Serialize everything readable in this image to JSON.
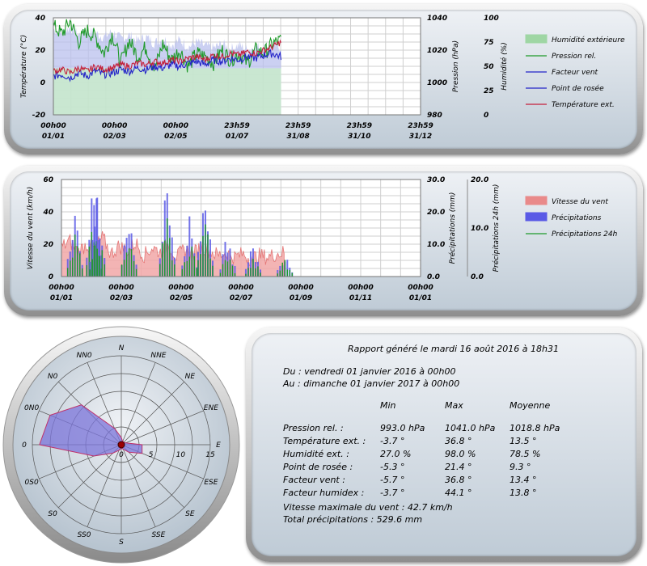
{
  "chart_data": [
    {
      "type": "line",
      "id": "weather",
      "x_ticks": [
        [
          "00h00",
          "01/01"
        ],
        [
          "00h00",
          "02/03"
        ],
        [
          "00h00",
          "02/05"
        ],
        [
          "23h59",
          "01/07"
        ],
        [
          "23h59",
          "31/08"
        ],
        [
          "23h59",
          "31/10"
        ],
        [
          "23h59",
          "31/12"
        ]
      ],
      "axes": {
        "left": {
          "label": "Température (°C)",
          "range": [
            -20,
            40
          ],
          "ticks": [
            "40",
            "20",
            "0",
            "-20"
          ]
        },
        "right1": {
          "label": "Pression (hPa)",
          "range": [
            980,
            1040
          ],
          "ticks": [
            "1040",
            "1020",
            "1000",
            "980"
          ]
        },
        "right2": {
          "label": "Humidité (%)",
          "range": [
            0,
            100
          ],
          "ticks": [
            "100",
            "75",
            "50",
            "25",
            "0"
          ]
        }
      },
      "legend": [
        {
          "label": "Humidité extérieure",
          "color": "#9fd6a4",
          "kind": "area"
        },
        {
          "label": "Pression rel.",
          "color": "#1f9a2a",
          "kind": "line"
        },
        {
          "label": "Facteur vent",
          "color": "#2323c8",
          "kind": "line"
        },
        {
          "label": "Point de rosée",
          "color": "#2323c8",
          "kind": "line"
        },
        {
          "label": "Température ext.",
          "color": "#c41e3a",
          "kind": "line"
        }
      ],
      "series_approx": {
        "temperature": [
          7,
          8,
          6,
          9,
          7,
          10,
          8,
          9,
          11,
          10,
          12,
          11,
          13,
          12,
          14,
          13,
          15,
          16,
          14,
          17,
          16,
          18,
          17,
          19,
          18,
          20,
          22,
          25
        ],
        "wind_chill": [
          4,
          5,
          3,
          6,
          4,
          7,
          5,
          6,
          8,
          7,
          9,
          8,
          10,
          9,
          11,
          10,
          12,
          13,
          11,
          14,
          13,
          15,
          14,
          16,
          15,
          17,
          18,
          16
        ],
        "pressure": [
          1035,
          1030,
          1038,
          1025,
          1032,
          1028,
          1018,
          1030,
          1012,
          1026,
          1016,
          1022,
          1008,
          1024,
          1014,
          1020,
          1010,
          1018,
          1016,
          1012,
          1020,
          1014,
          1018,
          1012,
          1020,
          1018,
          1024,
          1026
        ],
        "humidity": [
          88,
          85,
          90,
          82,
          87,
          84,
          80,
          86,
          78,
          82,
          76,
          80,
          74,
          79,
          72,
          77,
          70,
          75,
          71,
          69,
          73,
          68,
          72,
          67,
          70,
          69,
          72,
          70
        ]
      }
    },
    {
      "type": "bar",
      "id": "wind_rain",
      "x_ticks": [
        [
          "00h00",
          "01/01"
        ],
        [
          "00h00",
          "02/03"
        ],
        [
          "00h00",
          "02/05"
        ],
        [
          "00h00",
          "02/07"
        ],
        [
          "00h00",
          "01/09"
        ],
        [
          "00h00",
          "01/11"
        ],
        [
          "00h00",
          "01/01"
        ]
      ],
      "axes": {
        "left": {
          "label": "Vitesse du vent (km/h)",
          "range": [
            0,
            60
          ],
          "ticks": [
            "60",
            "40",
            "20",
            "0"
          ]
        },
        "right1": {
          "label": "Précipitations (mm)",
          "range": [
            0,
            30
          ],
          "ticks": [
            "30.0",
            "20.0",
            "10.0",
            "0.0"
          ]
        },
        "right2": {
          "label": "Précipitations 24h (mm)",
          "range": [
            0,
            20
          ],
          "ticks": [
            "20.0",
            "10.0",
            "0.0"
          ]
        }
      },
      "legend": [
        {
          "label": "Vitesse du vent",
          "color": "#e98a8a",
          "kind": "area"
        },
        {
          "label": "Précipitations",
          "color": "#5a5ae6",
          "kind": "area"
        },
        {
          "label": "Précipitations 24h",
          "color": "#1f9a2a",
          "kind": "line"
        }
      ],
      "series_approx": {
        "wind_speed": [
          18,
          22,
          15,
          20,
          17,
          24,
          14,
          19,
          16,
          21,
          13,
          18,
          15,
          20,
          12,
          17,
          14,
          19,
          16,
          13,
          15,
          12,
          14,
          11,
          13,
          12,
          14,
          15
        ],
        "rain_24h_peaks": [
          [
            0.04,
            14
          ],
          [
            0.1,
            18
          ],
          [
            0.11,
            15
          ],
          [
            0.21,
            13
          ],
          [
            0.33,
            18
          ],
          [
            0.4,
            11
          ],
          [
            0.45,
            19
          ],
          [
            0.52,
            8
          ],
          [
            0.6,
            6
          ],
          [
            0.7,
            5
          ]
        ]
      }
    },
    {
      "type": "polar",
      "id": "wind_rose",
      "directions": [
        "N",
        "NNE",
        "NE",
        "ENE",
        "E",
        "ESE",
        "SE",
        "SSE",
        "S",
        "SS0",
        "S0",
        "0S0",
        "0",
        "0N0",
        "N0",
        "NN0"
      ],
      "radial_ticks": [
        "0",
        "5",
        "10",
        "15"
      ],
      "r_max": 15,
      "values": [
        1.2,
        0.6,
        0.6,
        0.8,
        3.5,
        3.8,
        1.8,
        0.8,
        0.6,
        1.0,
        2.0,
        5.0,
        13.8,
        13.0,
        9.5,
        3.0
      ]
    }
  ],
  "report": {
    "title": "Rapport généré le mardi 16 août 2016 à 18h31",
    "period_from": "Du : vendredi 01 janvier 2016 à 00h00",
    "period_to": "Au : dimanche 01 janvier 2017 à 00h00",
    "columns": [
      "Min",
      "Max",
      "Moyenne"
    ],
    "rows": [
      {
        "label": "Pression rel. :",
        "min": "993.0 hPa",
        "max": "1041.0 hPa",
        "avg": "1018.8 hPa"
      },
      {
        "label": "Température ext. :",
        "min": "-3.7 °",
        "max": "36.8 °",
        "avg": "13.5 °"
      },
      {
        "label": "Humidité ext. :",
        "min": "27.0 %",
        "max": "98.0 %",
        "avg": "78.5 %"
      },
      {
        "label": "Point de rosée :",
        "min": "-5.3 °",
        "max": "21.4 °",
        "avg": "9.3 °"
      },
      {
        "label": "Facteur vent :",
        "min": "-5.7 °",
        "max": "36.8 °",
        "avg": "13.4 °"
      },
      {
        "label": "Facteur humidex :",
        "min": "-3.7 °",
        "max": "44.1 °",
        "avg": "13.8 °"
      }
    ],
    "max_wind": "Vitesse maximale du vent : 42.7 km/h",
    "total_rain": "Total précipitations : 529.6 mm"
  }
}
